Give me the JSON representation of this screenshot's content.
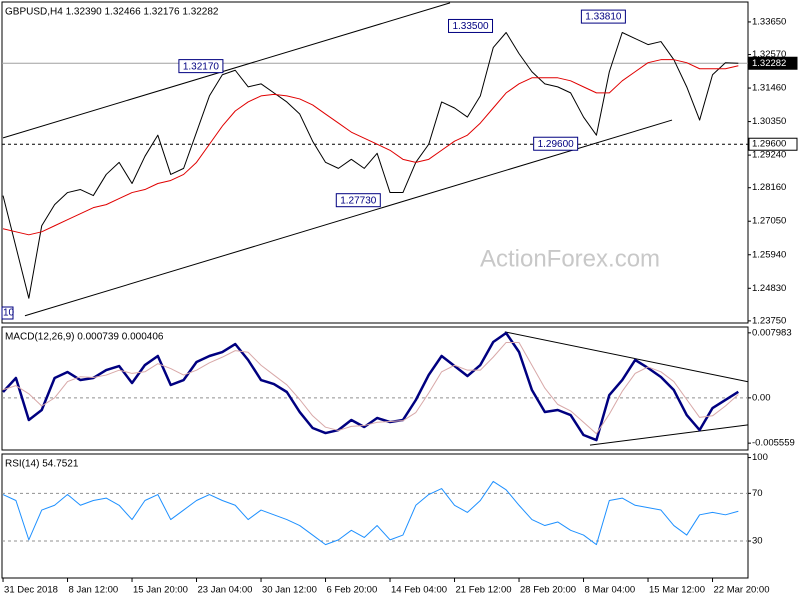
{
  "chart_data": [
    {
      "type": "line",
      "title": "GBPUSD,H4  1.32390 1.32466 1.32176 1.32282",
      "watermark": "ActionForex.com",
      "edge_label": "10",
      "xlim": [
        -0.08,
        57.75
      ],
      "ylim": [
        1.2368,
        1.3431
      ],
      "yticks": [
        {
          "value": 1.3365,
          "label": "1.33650"
        },
        {
          "value": 1.3257,
          "label": "1.32570"
        },
        {
          "value": 1.3146,
          "label": "1.31460"
        },
        {
          "value": 1.3035,
          "label": "1.30350"
        },
        {
          "value": 1.2924,
          "label": "1.29240"
        },
        {
          "value": 1.2816,
          "label": "1.28160"
        },
        {
          "value": 1.2705,
          "label": "1.27050"
        },
        {
          "value": 1.2594,
          "label": "1.25940"
        },
        {
          "value": 1.2483,
          "label": "1.24830"
        },
        {
          "value": 1.2375,
          "label": "1.23750"
        }
      ],
      "series": [
        {
          "color": "#000000",
          "line_width": 1,
          "values": [
            1.279,
            1.262,
            1.245,
            1.269,
            1.276,
            1.28,
            1.281,
            1.279,
            1.286,
            1.29,
            1.283,
            1.292,
            1.299,
            1.286,
            1.288,
            1.3,
            1.312,
            1.319,
            1.3205,
            1.315,
            1.316,
            1.313,
            1.31,
            1.306,
            1.297,
            1.29,
            1.288,
            1.291,
            1.288,
            1.293,
            1.28,
            1.28,
            1.29,
            1.296,
            1.31,
            1.308,
            1.305,
            1.312,
            1.328,
            1.333,
            1.326,
            1.32,
            1.316,
            1.315,
            1.313,
            1.305,
            1.299,
            1.32,
            1.333,
            1.331,
            1.329,
            1.33,
            1.324,
            1.315,
            1.304,
            1.319,
            1.323,
            1.3228
          ]
        },
        {
          "color": "#e00000",
          "line_width": 1,
          "values": [
            1.268,
            1.267,
            1.266,
            1.267,
            1.269,
            1.271,
            1.273,
            1.275,
            1.276,
            1.278,
            1.28,
            1.281,
            1.283,
            1.284,
            1.286,
            1.29,
            1.296,
            1.302,
            1.307,
            1.31,
            1.312,
            1.3125,
            1.312,
            1.311,
            1.309,
            1.306,
            1.303,
            1.3,
            1.298,
            1.296,
            1.294,
            1.291,
            1.29,
            1.291,
            1.294,
            1.297,
            1.299,
            1.303,
            1.308,
            1.313,
            1.316,
            1.318,
            1.318,
            1.318,
            1.317,
            1.315,
            1.313,
            1.313,
            1.317,
            1.32,
            1.323,
            1.324,
            1.324,
            1.323,
            1.321,
            1.321,
            1.321,
            1.322
          ]
        }
      ],
      "levels": [
        {
          "value": 1.32282,
          "label": "1.32282",
          "style": "solid",
          "color": "#a0a0a0"
        },
        {
          "value": 1.296,
          "label": "1.29600",
          "style": "dashed",
          "color": "#000000"
        }
      ],
      "annotations": [
        {
          "label": "1.32170",
          "x": 17.2,
          "value": 1.3217
        },
        {
          "label": "1.33500",
          "x": 38.1,
          "value": 1.335
        },
        {
          "label": "1.33810",
          "x": 48.4,
          "value": 1.3381
        },
        {
          "label": "1.29600",
          "x": 44.7,
          "value": 1.296
        },
        {
          "label": "1.27730",
          "x": 29.4,
          "value": 1.2773
        }
      ],
      "trendlines": [
        {
          "x": [
            0,
            34.65
          ],
          "values": [
            1.2981,
            1.3428
          ]
        },
        {
          "x": [
            1.7,
            51.86
          ],
          "values": [
            1.2392,
            1.304
          ]
        }
      ]
    },
    {
      "type": "line",
      "title": "MACD(12,26,9) 0.000739 0.000406",
      "xlim": [
        -0.08,
        57.75
      ],
      "ylim": [
        -0.0064,
        0.0087
      ],
      "yticks": [
        0.007983,
        {
          "value": 0,
          "label": "0.00"
        },
        -0.005559
      ],
      "series": [
        {
          "color": "#000080",
          "line_width": 2.5,
          "values": [
            0.00072,
            0.00244,
            -0.00272,
            -0.00149,
            0.00244,
            0.00317,
            0.00219,
            0.00244,
            0.00342,
            0.00391,
            0.00182,
            0.00403,
            0.00514,
            0.00158,
            0.00219,
            0.0044,
            0.00514,
            0.00563,
            0.00661,
            0.00465,
            0.00219,
            0.0017,
            0.00072,
            -0.00174,
            -0.0037,
            -0.00432,
            -0.00395,
            -0.00272,
            -0.00358,
            -0.00247,
            -0.00297,
            -0.00272,
            -0.00026,
            0.00281,
            0.00514,
            0.00391,
            0.00268,
            0.00403,
            0.00686,
            0.00796,
            0.00563,
            0.00096,
            -0.00174,
            -0.00149,
            -0.00211,
            -0.00456,
            -0.00518,
            0.00035,
            0.00219,
            0.00465,
            0.00367,
            0.00256,
            0.00096,
            -0.00211,
            -0.00395,
            -0.00125,
            -0.00026,
            0.00074
          ]
        },
        {
          "color": "#d8a8a8",
          "line_width": 1,
          "values": [
            0.001,
            0.0015,
            0.0005,
            -0.001,
            0.0,
            0.002,
            0.0026,
            0.0025,
            0.0028,
            0.0034,
            0.003,
            0.0032,
            0.0042,
            0.0036,
            0.0028,
            0.0034,
            0.0043,
            0.005,
            0.0058,
            0.0056,
            0.004,
            0.0028,
            0.0016,
            -0.0002,
            -0.0022,
            -0.0036,
            -0.004,
            -0.0035,
            -0.0034,
            -0.003,
            -0.0029,
            -0.0028,
            -0.0018,
            0.0006,
            0.0032,
            0.004,
            0.0034,
            0.0034,
            0.005,
            0.0068,
            0.0068,
            0.004,
            0.0012,
            -0.0008,
            -0.0016,
            -0.003,
            -0.0044,
            -0.002,
            0.0008,
            0.003,
            0.0038,
            0.0032,
            0.002,
            -0.0002,
            -0.0024,
            -0.0022,
            -0.001,
            0.000406
          ]
        }
      ],
      "levels": [
        {
          "value": 0,
          "style": "dashed",
          "color": "#909090"
        }
      ],
      "trendlines": [
        {
          "x": [
            38.9,
            58.3
          ],
          "values": [
            0.0081,
            0.0018
          ]
        },
        {
          "x": [
            45.5,
            58.3
          ],
          "values": [
            -0.0058,
            -0.0032
          ]
        }
      ]
    },
    {
      "type": "line",
      "title": "RSI(14) 54.7521",
      "xlim": [
        -0.08,
        57.75
      ],
      "ylim": [
        -1,
        103
      ],
      "yticks": [
        100,
        70,
        30
      ],
      "series": [
        {
          "color": "#1e90ff",
          "line_width": 1,
          "values": [
            69,
            64,
            31,
            56,
            60,
            69,
            60,
            64,
            66,
            60,
            48,
            64,
            69,
            48,
            56,
            64,
            69,
            64,
            60,
            48,
            56,
            52,
            48,
            43,
            35,
            27,
            31,
            39,
            33,
            43,
            31,
            35,
            60,
            69,
            74,
            60,
            54,
            64,
            80,
            73,
            60,
            48,
            43,
            46,
            39,
            35,
            27,
            64,
            66,
            60,
            58,
            56,
            43,
            35,
            52,
            54,
            52,
            55
          ]
        }
      ],
      "levels": [
        {
          "value": 70,
          "style": "dashed",
          "color": "#909090"
        },
        {
          "value": 30,
          "style": "dashed",
          "color": "#909090"
        }
      ],
      "xticks": [
        {
          "value": 0,
          "label": "31 Dec 2018"
        },
        {
          "value": 5,
          "label": "8 Jan 12:00"
        },
        {
          "value": 10,
          "label": "15 Jan 20:00"
        },
        {
          "value": 15,
          "label": "23 Jan 04:00"
        },
        {
          "value": 20,
          "label": "30 Jan 12:00"
        },
        {
          "value": 25,
          "label": "6 Feb 20:00"
        },
        {
          "value": 30,
          "label": "14 Feb 04:00"
        },
        {
          "value": 35,
          "label": "21 Feb 12:00"
        },
        {
          "value": 40,
          "label": "28 Feb 20:00"
        },
        {
          "value": 45,
          "label": "8 Mar 04:00"
        },
        {
          "value": 50,
          "label": "15 Mar 12:00"
        },
        {
          "value": 55,
          "label": "22 Mar 20:00"
        }
      ]
    }
  ]
}
